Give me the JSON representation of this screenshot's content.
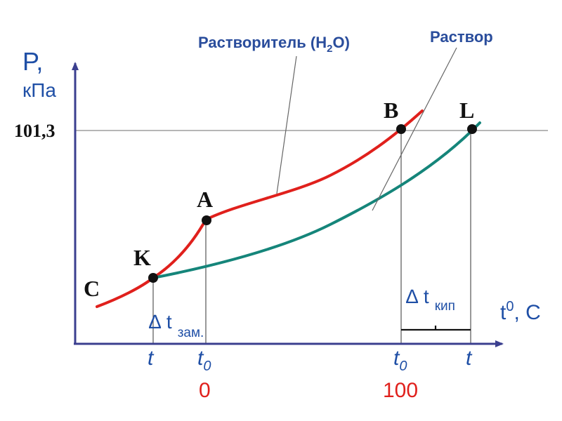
{
  "y_axis": {
    "symbol": "P,",
    "unit": "кПа",
    "value_label": "101,3"
  },
  "x_axis": {
    "symbol": "t",
    "superscript": "0",
    "unit": ", C"
  },
  "callouts": {
    "solvent": {
      "text": "Растворитель (H",
      "sub": "2",
      "tail": "O)"
    },
    "solution": "Раствор"
  },
  "points": {
    "C": "C",
    "K": "K",
    "A": "A",
    "B": "B",
    "L": "L"
  },
  "delta_freeze": {
    "symbol": "∆ t",
    "sub": "зам."
  },
  "delta_boil": {
    "symbol": "∆ t",
    "sub": "кип"
  },
  "x_ticks": {
    "t_freeze_solution": "t",
    "t0_freeze": "t",
    "t0_freeze_sub": "0",
    "t0_boil": "t",
    "t0_boil_sub": "0",
    "t_boil_solution": "t"
  },
  "reference_values": {
    "freeze": "0",
    "boil": "100"
  },
  "colors": {
    "solvent_curve": "#e0201c",
    "solution_curve": "#15857a",
    "axis": "#3b3f8f",
    "blue_text": "#1f4fa6",
    "red_text": "#e0201c",
    "callout_text": "#2a4d9c"
  }
}
